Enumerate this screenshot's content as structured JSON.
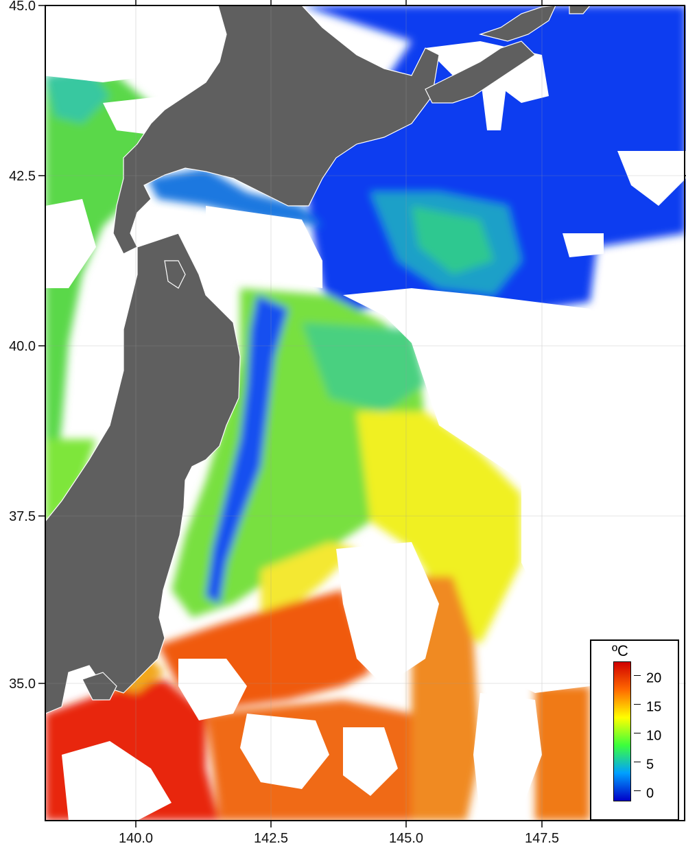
{
  "map": {
    "lat_ticks": [
      "45.0",
      "42.5",
      "40.0",
      "37.5",
      "35.0"
    ],
    "lon_ticks": [
      "140.0",
      "142.5",
      "145.0",
      "147.5"
    ]
  },
  "legend": {
    "unit": "ºC",
    "ticks": [
      "20",
      "15",
      "10",
      "5",
      "0"
    ],
    "colors": [
      "#d00000",
      "#ff6a00",
      "#ffff00",
      "#3cff3c",
      "#00a0ff",
      "#0000c8"
    ]
  },
  "colors": {
    "land": "#5f5f5f",
    "cloud": "#ffffff",
    "frame": "#000000"
  }
}
